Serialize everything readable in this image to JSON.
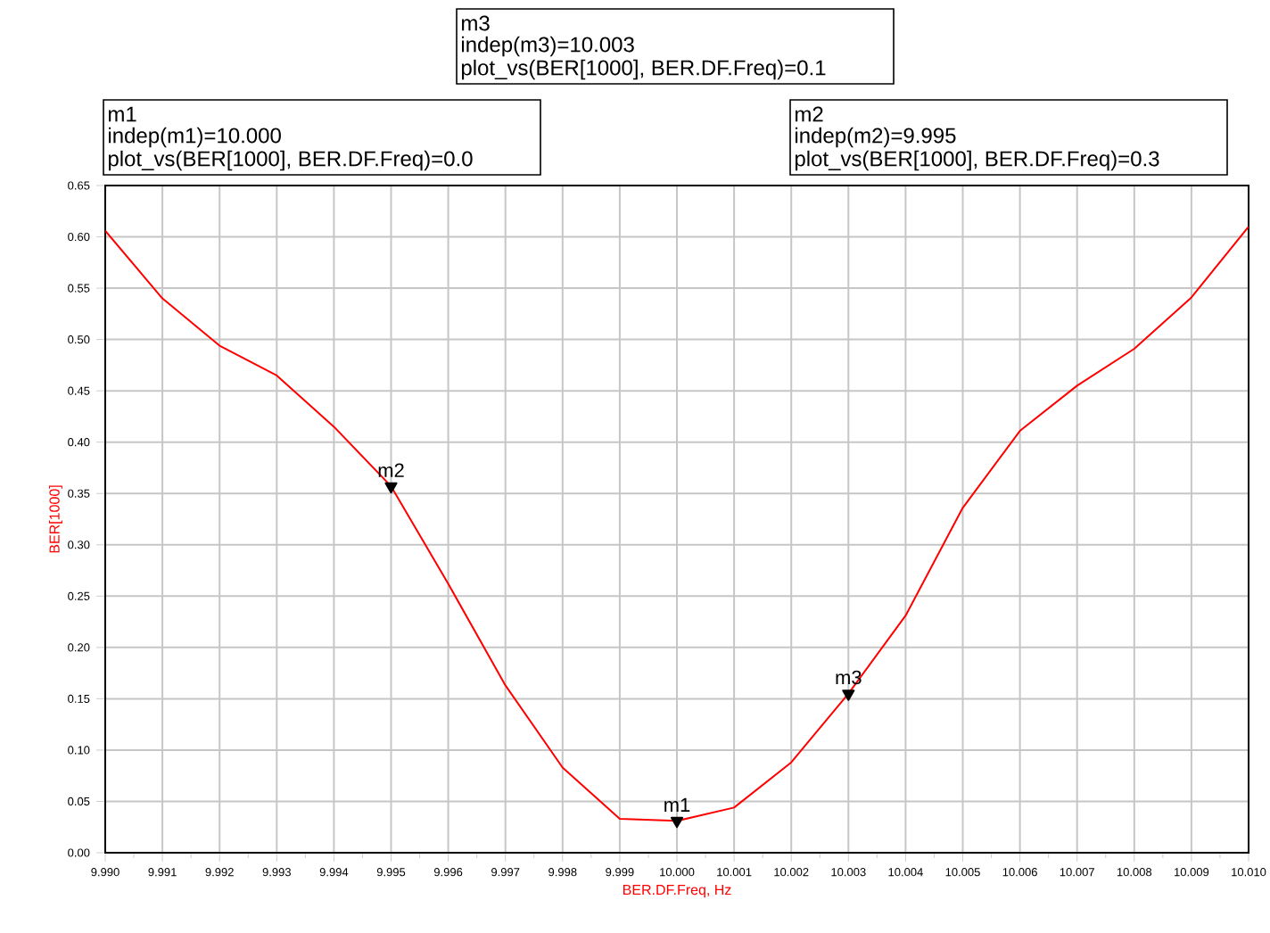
{
  "chart_data": {
    "type": "line",
    "xlabel": "BER.DF.Freq, Hz",
    "ylabel": "BER[1000]",
    "x": [
      9.99,
      9.991,
      9.992,
      9.993,
      9.994,
      9.995,
      9.996,
      9.997,
      9.998,
      9.999,
      10.0,
      10.001,
      10.002,
      10.003,
      10.004,
      10.005,
      10.006,
      10.007,
      10.008,
      10.009,
      10.01
    ],
    "series": [
      {
        "color": "#ff0000",
        "values": [
          0.606,
          0.54,
          0.494,
          0.465,
          0.415,
          0.357,
          0.262,
          0.163,
          0.083,
          0.033,
          0.031,
          0.044,
          0.088,
          0.155,
          0.231,
          0.336,
          0.411,
          0.455,
          0.491,
          0.541,
          0.61
        ]
      },
      {
        "type": "scatter",
        "marker": "triangle",
        "color": "#000000",
        "x": [
          10.0,
          9.995,
          10.003
        ],
        "values": [
          0.031,
          0.357,
          0.155
        ]
      }
    ],
    "xlim": [
      9.99,
      10.01
    ],
    "ylim": [
      0,
      0.65
    ],
    "xticks": [
      {
        "value": 9.99,
        "label": "9.990"
      },
      {
        "value": 9.991,
        "label": "9.991"
      },
      {
        "value": 9.992,
        "label": "9.992"
      },
      {
        "value": 9.993,
        "label": "9.993"
      },
      {
        "value": 9.994,
        "label": "9.994"
      },
      {
        "value": 9.995,
        "label": "9.995"
      },
      {
        "value": 9.996,
        "label": "9.996"
      },
      {
        "value": 9.997,
        "label": "9.997"
      },
      {
        "value": 9.998,
        "label": "9.998"
      },
      {
        "value": 9.999,
        "label": "9.999"
      },
      {
        "value": 10.0,
        "label": "10.000"
      },
      {
        "value": 10.001,
        "label": "10.001"
      },
      {
        "value": 10.002,
        "label": "10.002"
      },
      {
        "value": 10.003,
        "label": "10.003"
      },
      {
        "value": 10.004,
        "label": "10.004"
      },
      {
        "value": 10.005,
        "label": "10.005"
      },
      {
        "value": 10.006,
        "label": "10.006"
      },
      {
        "value": 10.007,
        "label": "10.007"
      },
      {
        "value": 10.008,
        "label": "10.008"
      },
      {
        "value": 10.009,
        "label": "10.009"
      },
      {
        "value": 10.01,
        "label": "10.010"
      }
    ],
    "yticks": [
      {
        "value": 0,
        "label": "0.00"
      },
      {
        "value": 0.05,
        "label": "0.05"
      },
      {
        "value": 0.1,
        "label": "0.10"
      },
      {
        "value": 0.15,
        "label": "0.15"
      },
      {
        "value": 0.2,
        "label": "0.20"
      },
      {
        "value": 0.25,
        "label": "0.25"
      },
      {
        "value": 0.3,
        "label": "0.30"
      },
      {
        "value": 0.35,
        "label": "0.35"
      },
      {
        "value": 0.4,
        "label": "0.40"
      },
      {
        "value": 0.45,
        "label": "0.45"
      },
      {
        "value": 0.5,
        "label": "0.50"
      },
      {
        "value": 0.55,
        "label": "0.55"
      },
      {
        "value": 0.6,
        "label": "0.60"
      },
      {
        "value": 0.65,
        "label": "0.65"
      }
    ],
    "grid": true,
    "annotations": [
      "m3",
      "indep(m3)=10.003",
      "plot_vs(BER[1000], BER.DF.Freq)=0.1",
      "m1",
      "indep(m1)=10.000",
      "plot_vs(BER[1000], BER.DF.Freq)=0.0",
      "m2",
      "indep(m2)=9.995",
      "plot_vs(BER[1000], BER.DF.Freq)=0.3",
      {
        "text": "m1",
        "x": 10.0,
        "y": 0.031
      },
      {
        "text": "m2",
        "x": 9.995,
        "y": 0.357
      },
      {
        "text": "m3",
        "x": 10.003,
        "y": 0.155
      }
    ]
  }
}
